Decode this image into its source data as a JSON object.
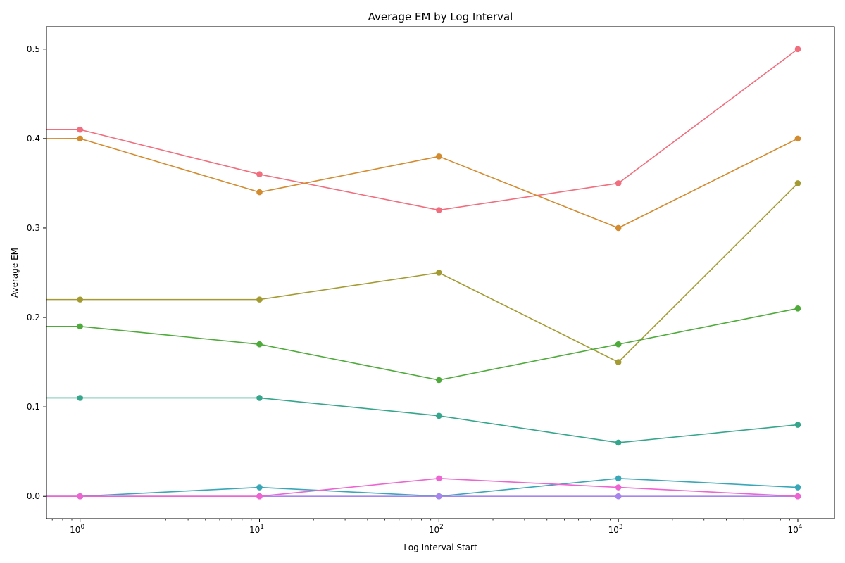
{
  "chart_data": {
    "type": "line",
    "title": "Average EM by Log Interval",
    "xlabel": "Log Interval Start",
    "ylabel": "Average EM",
    "x_scale": "log",
    "xlim": [
      0.65,
      16000
    ],
    "ylim": [
      -0.025,
      0.525
    ],
    "x": [
      1,
      10,
      100,
      1000,
      10000
    ],
    "x_tick_labels": [
      {
        "base": "10",
        "exp": "0"
      },
      {
        "base": "10",
        "exp": "1"
      },
      {
        "base": "10",
        "exp": "2"
      },
      {
        "base": "10",
        "exp": "3"
      },
      {
        "base": "10",
        "exp": "4"
      }
    ],
    "y_ticks": [
      0.0,
      0.1,
      0.2,
      0.3,
      0.4,
      0.5
    ],
    "y_tick_labels": [
      "0.0",
      "0.1",
      "0.2",
      "0.3",
      "0.4",
      "0.5"
    ],
    "grid": false,
    "legend": "none",
    "series": [
      {
        "color": "#f06e7d",
        "values": [
          0.41,
          0.36,
          0.32,
          0.35,
          0.5
        ]
      },
      {
        "color": "#d38b30",
        "values": [
          0.4,
          0.34,
          0.38,
          0.3,
          0.4
        ]
      },
      {
        "color": "#a39b32",
        "values": [
          0.22,
          0.22,
          0.25,
          0.15,
          0.35
        ]
      },
      {
        "color": "#4eaa3a",
        "values": [
          0.19,
          0.17,
          0.13,
          0.17,
          0.21
        ]
      },
      {
        "color": "#35a68c",
        "values": [
          0.11,
          0.11,
          0.09,
          0.06,
          0.08
        ]
      },
      {
        "color": "#38a8b8",
        "values": [
          0.0,
          0.01,
          0.0,
          0.02,
          0.01
        ]
      },
      {
        "color": "#a784ee",
        "values": [
          0.0,
          0.0,
          0.0,
          0.0,
          0.0
        ]
      },
      {
        "color": "#ee64d2",
        "values": [
          0.0,
          0.0,
          0.02,
          0.01,
          0.0
        ]
      }
    ]
  }
}
